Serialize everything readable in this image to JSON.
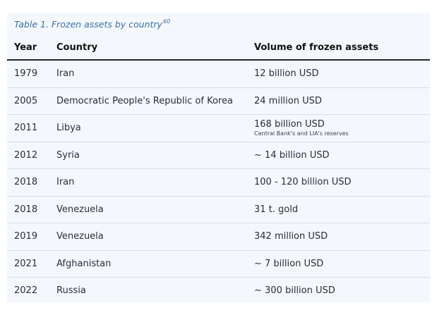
{
  "caption": {
    "text": "Table 1. Frozen assets by country",
    "footnote": "60"
  },
  "table": {
    "headers": [
      "Year",
      "Country",
      "Volume of frozen assets"
    ],
    "rows": [
      {
        "year": "1979",
        "country": "Iran",
        "volume": "12 billion USD",
        "note": ""
      },
      {
        "year": "2005",
        "country": "Democratic People's Republic of Korea",
        "volume": "24 million USD",
        "note": ""
      },
      {
        "year": "2011",
        "country": "Libya",
        "volume": "168 billion USD",
        "note": "Central Bank's and LIA's reserves"
      },
      {
        "year": "2012",
        "country": "Syria",
        "volume": "~ 14 billion USD",
        "note": ""
      },
      {
        "year": "2018",
        "country": "Iran",
        "volume": "100 - 120 billion USD",
        "note": ""
      },
      {
        "year": "2018",
        "country": "Venezuela",
        "volume": "31 t. gold",
        "note": ""
      },
      {
        "year": "2019",
        "country": "Venezuela",
        "volume": "342 million USD",
        "note": ""
      },
      {
        "year": "2021",
        "country": "Afghanistan",
        "volume": "~ 7 billion USD",
        "note": ""
      },
      {
        "year": "2022",
        "country": "Russia",
        "volume": "~ 300 billion USD",
        "note": ""
      }
    ]
  },
  "colors": {
    "panel_background": "#f4f8fc",
    "caption": "#3b6fa8",
    "header_rule": "#1f2630",
    "row_rule": "#d9dee4"
  }
}
